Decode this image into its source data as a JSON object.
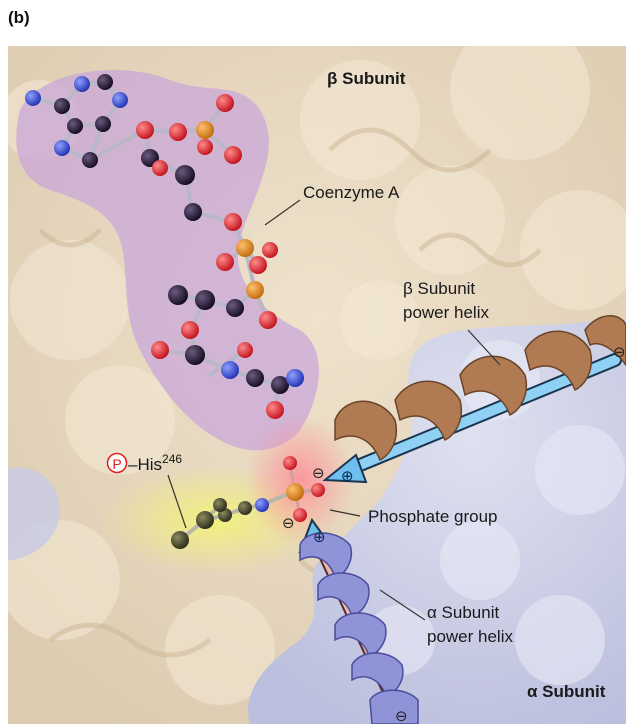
{
  "panel_letter": "(b)",
  "labels": {
    "beta_subunit": "β Subunit",
    "coenzyme_a": "Coenzyme A",
    "beta_helix_line1": "β Subunit",
    "beta_helix_line2": "power helix",
    "phospho_his_prefix": "–His",
    "phospho_his_number": "246",
    "phospho_symbol": "P",
    "phosphate_group": "Phosphate group",
    "alpha_helix_line1": "α Subunit",
    "alpha_helix_line2": "power helix",
    "alpha_subunit": "α Subunit"
  },
  "dipole_symbols": {
    "minus": "⊖",
    "plus": "⊕"
  },
  "colors": {
    "beta_protein": "#e8d8c0",
    "alpha_protein": "#c7cbe6",
    "coa_surface": "#c9a7d8",
    "beta_helix": "#b07a52",
    "alpha_helix": "#8f93d8",
    "dipole_arrow": "#79c4ee",
    "his_highlight": "#eef08a",
    "atom_carbon": "#1a1028",
    "atom_oxygen": "#e0202a",
    "atom_nitrogen": "#3344cc",
    "atom_phosphorus": "#e08a1a",
    "his_circle": "#e02020"
  }
}
